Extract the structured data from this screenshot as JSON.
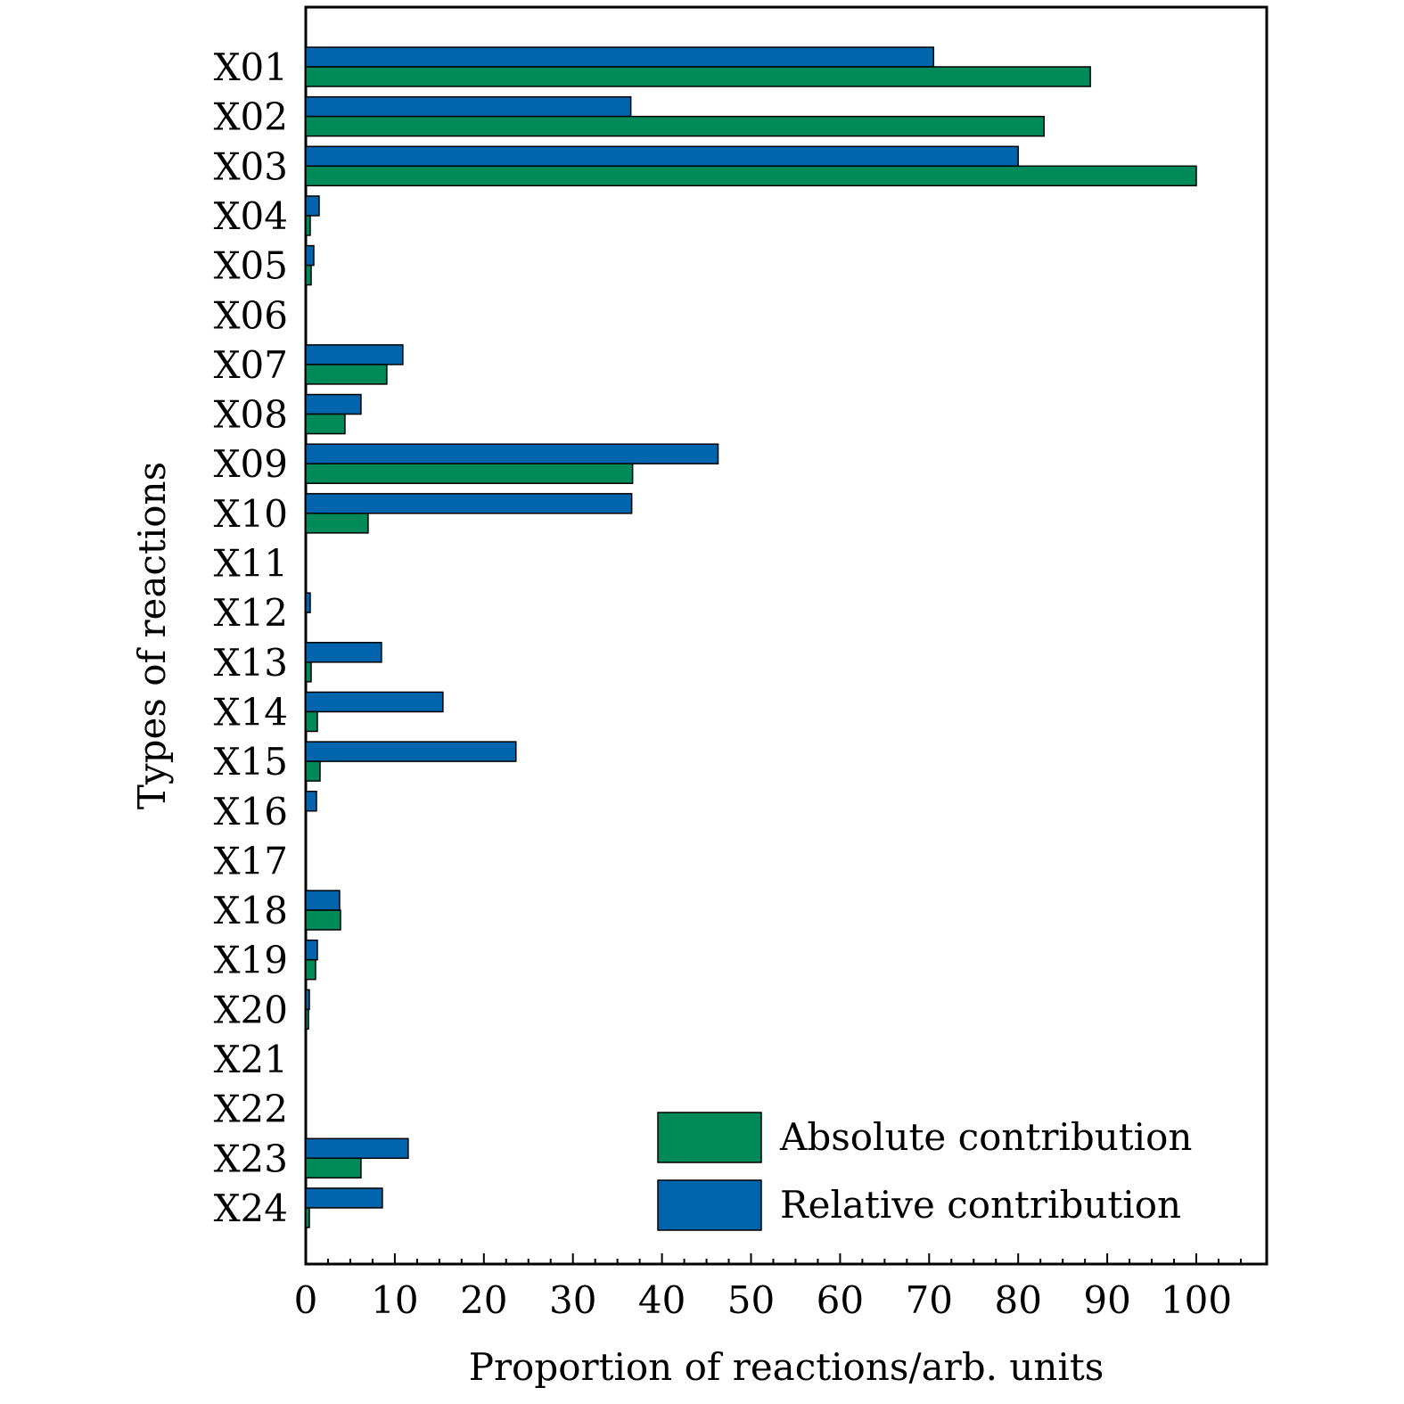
{
  "chart_data": {
    "type": "bar",
    "orientation": "horizontal",
    "title": "",
    "xlabel": "Proportion of reactions/arb. units",
    "ylabel": "Types of reactions",
    "xlim": [
      0,
      108
    ],
    "xticks": [
      "0",
      "10",
      "20",
      "30",
      "40",
      "50",
      "60",
      "70",
      "80",
      "90",
      "100"
    ],
    "grid": false,
    "legend_position": "bottom-right",
    "categories": [
      "X01",
      "X02",
      "X03",
      "X04",
      "X05",
      "X06",
      "X07",
      "X08",
      "X09",
      "X10",
      "X11",
      "X12",
      "X13",
      "X14",
      "X15",
      "X16",
      "X17",
      "X18",
      "X19",
      "X20",
      "X21",
      "X22",
      "X23",
      "X24"
    ],
    "series": [
      {
        "name": "Relative contribution",
        "color": "#0065ac",
        "values": [
          70.5,
          36.5,
          80.0,
          1.5,
          0.9,
          0,
          10.9,
          6.2,
          46.3,
          36.6,
          0,
          0.5,
          8.5,
          15.4,
          23.6,
          1.2,
          0,
          3.8,
          1.3,
          0.4,
          0,
          0,
          11.5,
          8.6
        ]
      },
      {
        "name": "Absolute contribution",
        "color": "#008a5a",
        "values": [
          88.1,
          82.9,
          100.0,
          0.5,
          0.6,
          0,
          9.1,
          4.4,
          36.7,
          7.0,
          0,
          0,
          0.6,
          1.3,
          1.6,
          0,
          0,
          3.9,
          1.1,
          0.3,
          0,
          0,
          6.2,
          0.4
        ]
      }
    ]
  }
}
